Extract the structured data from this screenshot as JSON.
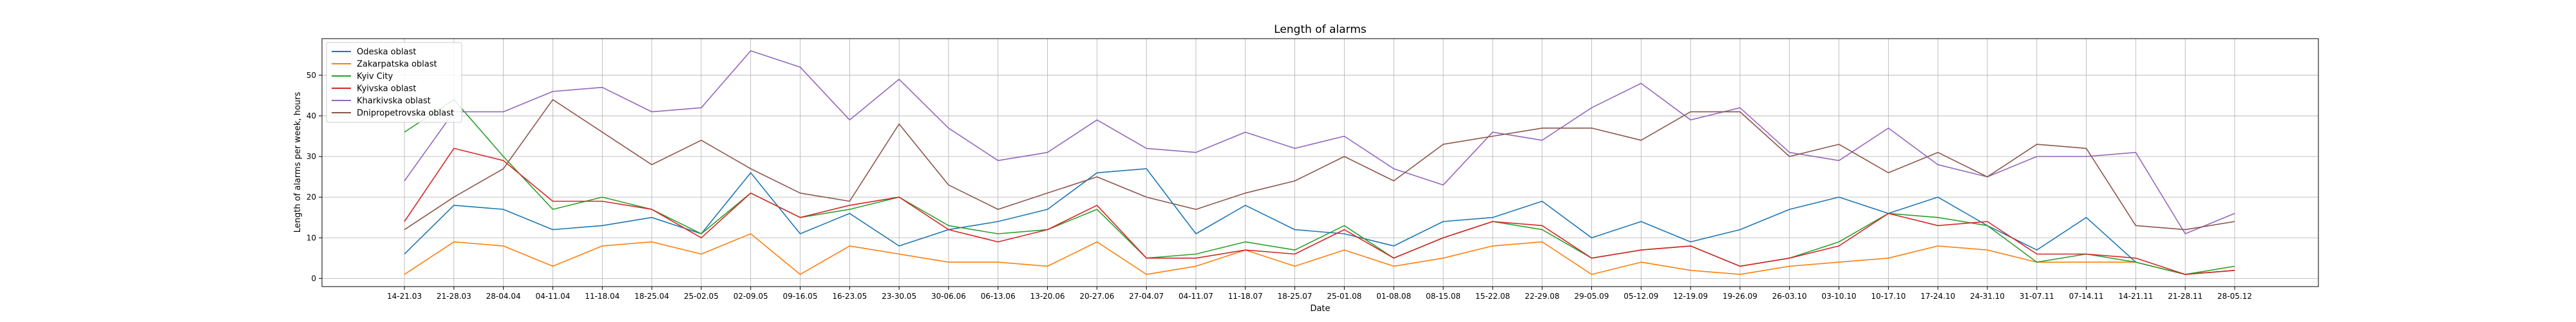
{
  "chart_data": {
    "type": "line",
    "title": "Length of alarms",
    "xlabel": "Date",
    "ylabel": "Length of alarms per week, hours",
    "ylim": [
      -2,
      59
    ],
    "yticks": [
      0,
      10,
      20,
      30,
      40,
      50
    ],
    "grid": true,
    "legend_position": "top-left",
    "categories": [
      "14-21.03",
      "21-28.03",
      "28-04.04",
      "04-11.04",
      "11-18.04",
      "18-25.04",
      "25-02.05",
      "02-09.05",
      "09-16.05",
      "16-23.05",
      "23-30.05",
      "30-06.06",
      "06-13.06",
      "13-20.06",
      "20-27.06",
      "27-04.07",
      "04-11.07",
      "11-18.07",
      "18-25.07",
      "25-01.08",
      "01-08.08",
      "08-15.08",
      "15-22.08",
      "22-29.08",
      "29-05.09",
      "05-12.09",
      "12-19.09",
      "19-26.09",
      "26-03.10",
      "03-10.10",
      "10-17.10",
      "17-24.10",
      "24-31.10",
      "31-07.11",
      "07-14.11",
      "14-21.11",
      "21-28.11",
      "28-05.12"
    ],
    "series": [
      {
        "name": "Odeska oblast",
        "color": "#1f77b4",
        "values": [
          6,
          18,
          17,
          12,
          13,
          15,
          11,
          26,
          11,
          16,
          8,
          12,
          14,
          17,
          26,
          27,
          11,
          18,
          12,
          11,
          8,
          14,
          15,
          19,
          10,
          14,
          9,
          12,
          17,
          20,
          16,
          20,
          13,
          7,
          15,
          4,
          1,
          2
        ]
      },
      {
        "name": "Zakarpatska oblast",
        "color": "#ff7f0e",
        "values": [
          1,
          9,
          8,
          3,
          8,
          9,
          6,
          11,
          1,
          8,
          6,
          4,
          4,
          3,
          9,
          1,
          3,
          7,
          3,
          7,
          3,
          5,
          8,
          9,
          1,
          4,
          2,
          1,
          3,
          4,
          5,
          8,
          7,
          4,
          4,
          4,
          1,
          2
        ]
      },
      {
        "name": "Kyiv City",
        "color": "#2ca02c",
        "values": [
          36,
          44,
          30,
          17,
          20,
          17,
          11,
          21,
          15,
          17,
          20,
          13,
          11,
          12,
          17,
          5,
          6,
          9,
          7,
          13,
          5,
          10,
          14,
          12,
          5,
          7,
          8,
          3,
          5,
          9,
          16,
          15,
          13,
          4,
          6,
          4,
          1,
          3
        ]
      },
      {
        "name": "Kyivska oblast",
        "color": "#d62728",
        "values": [
          14,
          32,
          29,
          19,
          19,
          17,
          10,
          21,
          15,
          18,
          20,
          12,
          9,
          12,
          18,
          5,
          5,
          7,
          6,
          12,
          5,
          10,
          14,
          13,
          5,
          7,
          8,
          3,
          5,
          8,
          16,
          13,
          14,
          6,
          6,
          5,
          1,
          2
        ]
      },
      {
        "name": "Kharkivska oblast",
        "color": "#9467bd",
        "values": [
          24,
          41,
          41,
          46,
          47,
          41,
          42,
          56,
          52,
          39,
          49,
          37,
          29,
          31,
          39,
          32,
          31,
          36,
          32,
          35,
          27,
          23,
          36,
          34,
          42,
          48,
          39,
          42,
          31,
          29,
          37,
          28,
          25,
          30,
          30,
          31,
          11,
          16
        ]
      },
      {
        "name": "Dnipropetrovska oblast",
        "color": "#8c564b",
        "values": [
          12,
          20,
          27,
          44,
          36,
          28,
          34,
          27,
          21,
          19,
          38,
          23,
          17,
          21,
          25,
          20,
          17,
          21,
          24,
          30,
          24,
          33,
          35,
          37,
          37,
          34,
          41,
          41,
          30,
          33,
          26,
          31,
          25,
          33,
          32,
          13,
          12,
          14
        ]
      }
    ]
  }
}
